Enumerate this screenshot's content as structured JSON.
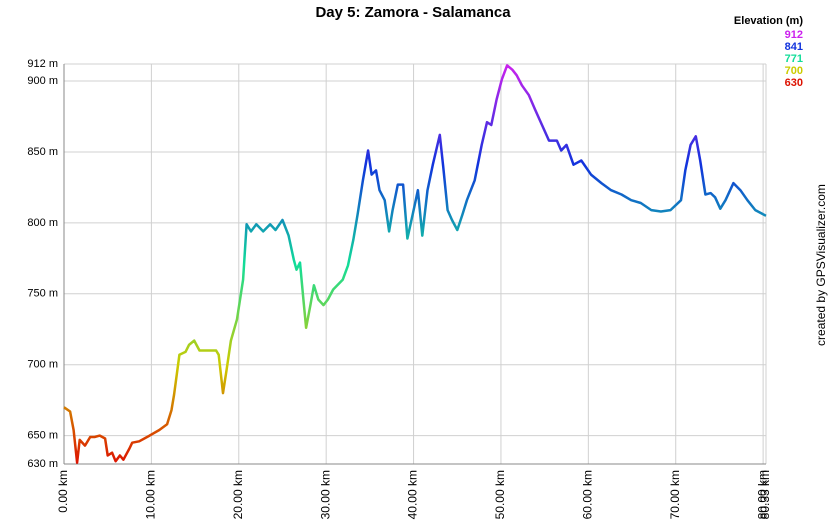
{
  "chart_data": {
    "type": "line",
    "title": "Day 5: Zamora - Salamanca",
    "legend_title": "Elevation (m)",
    "color_scale": [
      {
        "value": 912,
        "color": "#cc22ee"
      },
      {
        "value": 841,
        "color": "#1133dd"
      },
      {
        "value": 771,
        "color": "#11dd99"
      },
      {
        "value": 700,
        "color": "#cccc00"
      },
      {
        "value": 630,
        "color": "#dd1100"
      }
    ],
    "credit": "created by GPSVisualizer.com",
    "x": [
      0,
      0.7,
      1.1,
      1.5,
      1.8,
      2.4,
      3.0,
      3.5,
      4.1,
      4.7,
      5.0,
      5.5,
      5.9,
      6.4,
      6.8,
      7.5,
      7.8,
      8.6,
      9.8,
      10.9,
      11.8,
      12.3,
      12.6,
      13.2,
      13.9,
      14.3,
      14.9,
      15.5,
      16.6,
      17.4,
      17.7,
      18.2,
      18.6,
      19.1,
      19.8,
      20.5,
      20.9,
      21.4,
      22.0,
      22.8,
      23.6,
      24.2,
      25.0,
      25.7,
      26.3,
      26.6,
      27.0,
      27.4,
      27.7,
      28.2,
      28.6,
      29.1,
      29.7,
      30.2,
      30.8,
      31.9,
      32.5,
      33.1,
      33.6,
      34.2,
      34.8,
      35.2,
      35.7,
      36.1,
      36.7,
      37.2,
      37.6,
      38.2,
      38.8,
      39.3,
      39.9,
      40.5,
      41.0,
      41.6,
      42.2,
      43.0,
      43.4,
      43.9,
      44.4,
      45.0,
      45.6,
      46.1,
      47.0,
      47.8,
      48.4,
      48.9,
      49.5,
      50.1,
      50.7,
      51.3,
      51.8,
      52.4,
      53.2,
      53.9,
      54.7,
      55.5,
      56.4,
      56.9,
      57.5,
      58.3,
      59.2,
      60.3,
      61.5,
      62.6,
      63.8,
      64.9,
      66.0,
      67.2,
      68.3,
      69.4,
      70.6,
      71.1,
      71.7,
      72.3,
      72.8,
      73.4,
      74.0,
      74.5,
      75.1,
      75.7,
      76.6,
      77.4,
      78.2,
      79.1,
      80.33
    ],
    "values": [
      670,
      667,
      654,
      631,
      647,
      643,
      649,
      649,
      650,
      648,
      636,
      638,
      632,
      636,
      633,
      641,
      645,
      646,
      650,
      654,
      658,
      668,
      679,
      707,
      709,
      714,
      717,
      710,
      710,
      710,
      707,
      680,
      696,
      717,
      732,
      760,
      799,
      794,
      799,
      794,
      799,
      795,
      802,
      791,
      774,
      767,
      772,
      746,
      726,
      742,
      756,
      746,
      742,
      746,
      753,
      760,
      770,
      788,
      806,
      830,
      851,
      834,
      837,
      823,
      816,
      794,
      809,
      827,
      827,
      789,
      806,
      823,
      791,
      823,
      841,
      862,
      839,
      809,
      802,
      795,
      806,
      816,
      830,
      855,
      871,
      869,
      887,
      901,
      911,
      908,
      904,
      897,
      890,
      880,
      869,
      858,
      858,
      851,
      855,
      841,
      844,
      834,
      828,
      823,
      820,
      816,
      814,
      809,
      808,
      809,
      816,
      837,
      855,
      861,
      844,
      820,
      821,
      818,
      810,
      816,
      828,
      823,
      816,
      809,
      805
    ],
    "xlim": [
      0,
      80.33
    ],
    "ylim": [
      630,
      912
    ],
    "xticks": [
      {
        "value": 0,
        "label": "0.00 km"
      },
      {
        "value": 10,
        "label": "10.00 km"
      },
      {
        "value": 20,
        "label": "20.00 km"
      },
      {
        "value": 30,
        "label": "30.00 km"
      },
      {
        "value": 40,
        "label": "40.00 km"
      },
      {
        "value": 50,
        "label": "50.00 km"
      },
      {
        "value": 60,
        "label": "60.00 km"
      },
      {
        "value": 70,
        "label": "70.00 km"
      },
      {
        "value": 80,
        "label": "80.00 km"
      },
      {
        "value": 80.33,
        "label": "80.33 km"
      }
    ],
    "yticks": [
      {
        "value": 630,
        "label": "630 m"
      },
      {
        "value": 650,
        "label": "650 m"
      },
      {
        "value": 700,
        "label": "700 m"
      },
      {
        "value": 750,
        "label": "750 m"
      },
      {
        "value": 800,
        "label": "800 m"
      },
      {
        "value": 850,
        "label": "850 m"
      },
      {
        "value": 900,
        "label": "900 m"
      },
      {
        "value": 912,
        "label": "912 m"
      }
    ],
    "grid": true
  }
}
